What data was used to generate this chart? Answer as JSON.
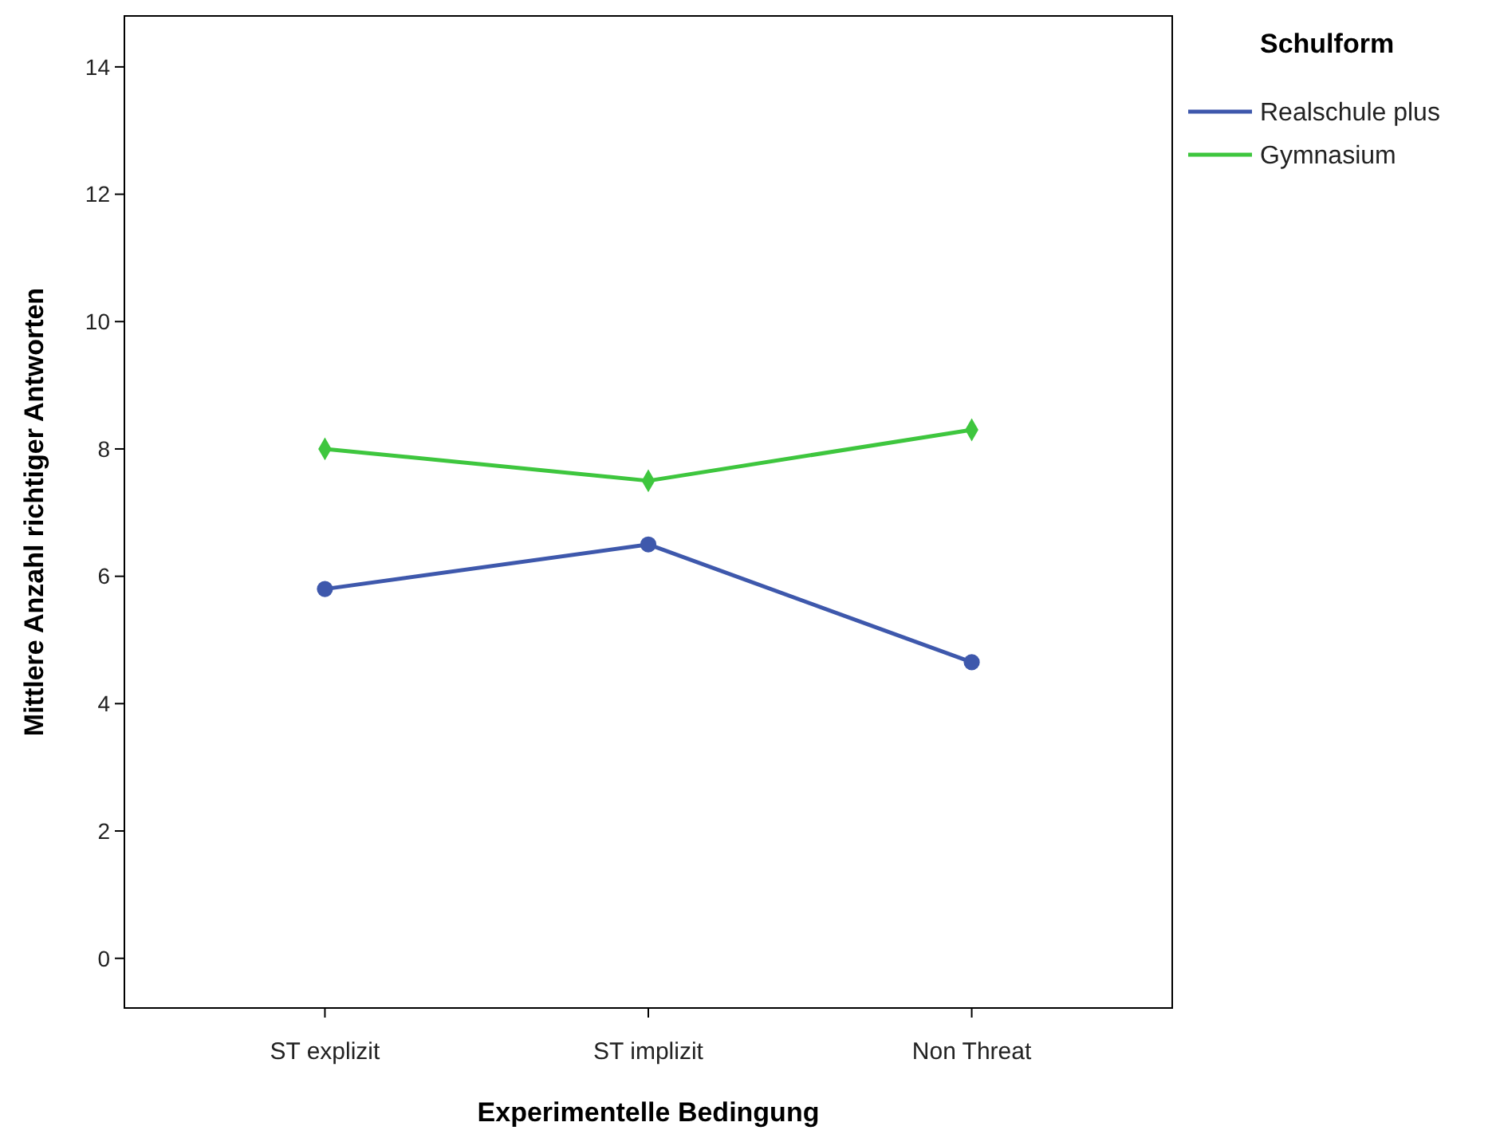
{
  "chart_data": {
    "type": "line",
    "xlabel": "Experimentelle Bedingung",
    "ylabel": "Mittlere Anzahl richtiger Antworten",
    "legend_title": "Schulform",
    "categories": [
      "ST explizit",
      "ST implizit",
      "Non Threat"
    ],
    "series": [
      {
        "name": "Realschule plus",
        "color": "#3e58ac",
        "values": [
          5.8,
          6.5,
          4.65
        ],
        "marker": "circle"
      },
      {
        "name": "Gymnasium",
        "color": "#3ec63e",
        "values": [
          8.0,
          7.5,
          8.3
        ],
        "marker": "diamond"
      }
    ],
    "ylim": [
      -0.78,
      14.8
    ],
    "yticks": [
      0,
      2,
      4,
      6,
      8,
      10,
      12,
      14
    ],
    "grid": false,
    "legend": "top right",
    "line_style": "solid"
  }
}
